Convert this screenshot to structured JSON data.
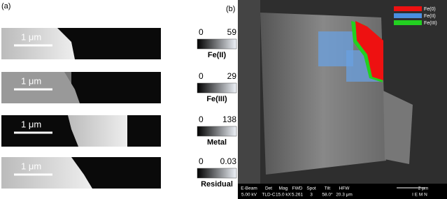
{
  "panel_a": {
    "label": "(a)",
    "strips": [
      {
        "scale": "1 μm",
        "min": "0",
        "max": "59",
        "name": "Fe(II)"
      },
      {
        "scale": "1 μm",
        "min": "0",
        "max": "29",
        "name": "Fe(III)"
      },
      {
        "scale": "1 μm",
        "min": "0",
        "max": "138",
        "name": "Metal"
      },
      {
        "scale": "1 μm",
        "min": "0",
        "max": "0.03",
        "name": "Residual"
      }
    ]
  },
  "panel_b": {
    "label": "(b)",
    "legend": [
      "Fe(0)",
      "Fe(II)",
      "Fe(III)"
    ],
    "info_bar": [
      [
        "E-Beam",
        "5.00 kV"
      ],
      [
        "Det",
        "TLD-C"
      ],
      [
        "Mag",
        "15.0 kX"
      ],
      [
        "FWD",
        "5.261"
      ],
      [
        "Spot",
        "3"
      ],
      [
        "Tilt",
        "58.0°"
      ],
      [
        "HFW",
        "20.3 μm"
      ]
    ],
    "scale": "2 μm",
    "lab": "I E M N"
  }
}
